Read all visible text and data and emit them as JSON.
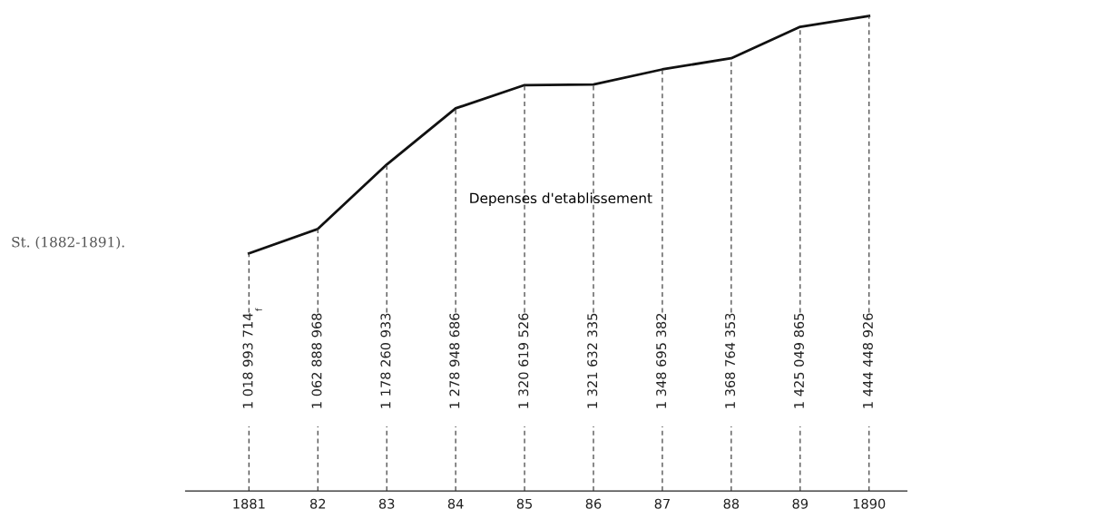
{
  "chart_data": {
    "type": "line",
    "categories": [
      "1881",
      "82",
      "83",
      "84",
      "85",
      "86",
      "87",
      "88",
      "89",
      "1890"
    ],
    "series": [
      {
        "color": "#111111",
        "values": [
          1018993714,
          1062888968,
          1178260933,
          1278948686,
          1320619526,
          1321632335,
          1348695382,
          1368764353,
          1425049865,
          1444448926
        ]
      }
    ],
    "data_labels": true,
    "annotations": [
      "Depenses d'etablissement",
      "St. (1882-1891).",
      "f"
    ],
    "grid": "x",
    "marker": "none",
    "line_style": "solid"
  }
}
